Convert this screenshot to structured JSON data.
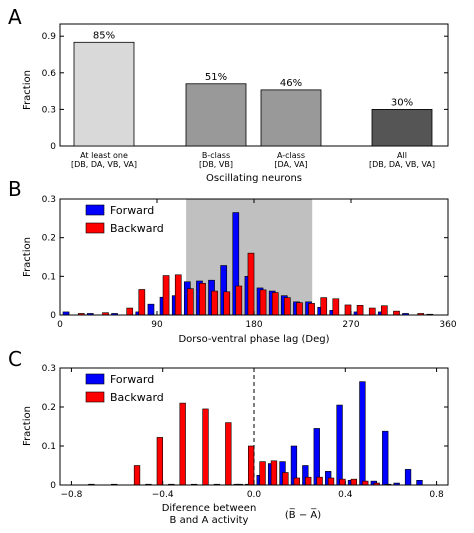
{
  "panel_labels": [
    "A",
    "B",
    "C"
  ],
  "colors": {
    "forward": "#0000ff",
    "backward": "#ff0000",
    "shade": "#c0c0c0"
  },
  "chart_data": [
    {
      "type": "bar",
      "panel": "A",
      "ylabel": "Fraction",
      "xlabel": "Oscillating neurons",
      "ylim": [
        0,
        1.0
      ],
      "yticks": [
        0,
        0.3,
        0.6,
        0.9
      ],
      "ytick_labels": [
        "0",
        "0.3",
        "0.6",
        "0.9"
      ],
      "categories": [
        {
          "line1": "At least one",
          "line2": "[DB, DA, VB, VA]",
          "value": 0.85,
          "label": "85%",
          "color": "#d9d9d9"
        },
        {
          "line1": "B-class",
          "line2": "[DB, VB]",
          "value": 0.51,
          "label": "51%",
          "color": "#999999"
        },
        {
          "line1": "A-class",
          "line2": "[DA, VA]",
          "value": 0.46,
          "label": "46%",
          "color": "#999999"
        },
        {
          "line1": "All",
          "line2": "[DB, DA, VB, VA]",
          "value": 0.3,
          "label": "30%",
          "color": "#555555"
        }
      ]
    },
    {
      "type": "bar",
      "panel": "B",
      "ylabel": "Fraction",
      "xlabel": "Dorso-ventral phase lag (Deg)",
      "xlim": [
        0,
        360
      ],
      "ylim": [
        0,
        0.3
      ],
      "xticks": [
        0,
        90,
        180,
        270,
        360
      ],
      "xtick_labels": [
        "0",
        "90",
        "180",
        "270",
        "360"
      ],
      "yticks": [
        0,
        0.1,
        0.2,
        0.3
      ],
      "ytick_labels": [
        "0",
        "0.1",
        "0.2",
        "0.3"
      ],
      "shaded_range": [
        117,
        234
      ],
      "bin_width": 11.25,
      "legend": "top-left",
      "series": [
        {
          "name": "Forward",
          "x": [
            5.6,
            28.1,
            50.6,
            73.1,
            84.4,
            95.6,
            106.9,
            118.1,
            129.4,
            140.6,
            151.9,
            163.1,
            174.4,
            185.6,
            196.9,
            208.1,
            219.4,
            230.6,
            241.9,
            253.1,
            275.6,
            298.1,
            320.6,
            343.1
          ],
          "values": [
            0.008,
            0.004,
            0.004,
            0.008,
            0.028,
            0.046,
            0.05,
            0.086,
            0.088,
            0.09,
            0.128,
            0.265,
            0.1,
            0.07,
            0.062,
            0.05,
            0.034,
            0.034,
            0.02,
            0.012,
            0.008,
            0.008,
            0.004,
            0.002
          ]
        },
        {
          "name": "Backward",
          "x": [
            16.9,
            39.4,
            61.9,
            73.1,
            95.6,
            106.9,
            118.1,
            129.4,
            140.6,
            151.9,
            163.1,
            174.4,
            185.6,
            196.9,
            208.1,
            219.4,
            230.6,
            241.9,
            253.1,
            264.4,
            275.6,
            286.9,
            298.1,
            309.4,
            331.9
          ],
          "values": [
            0.004,
            0.006,
            0.018,
            0.066,
            0.102,
            0.104,
            0.068,
            0.082,
            0.062,
            0.06,
            0.075,
            0.16,
            0.065,
            0.058,
            0.045,
            0.032,
            0.03,
            0.045,
            0.042,
            0.026,
            0.025,
            0.018,
            0.024,
            0.01,
            0.004
          ]
        }
      ]
    },
    {
      "type": "bar",
      "panel": "C",
      "ylabel": "Fraction",
      "xlabel_line1": "Diference between",
      "xlabel_line2": "B and A activity",
      "xlabel_math": "(B̅ − A̅)",
      "xlim": [
        -0.85,
        0.85
      ],
      "ylim": [
        0,
        0.3
      ],
      "xticks": [
        -0.8,
        -0.4,
        0.0,
        0.4,
        0.8
      ],
      "xtick_labels": [
        "−0.8",
        "−0.4",
        "0.0",
        "0.4",
        "0.8"
      ],
      "yticks": [
        0,
        0.1,
        0.2,
        0.3
      ],
      "ytick_labels": [
        "0",
        "0.1",
        "0.2",
        "0.3"
      ],
      "dashed_line_x": 0,
      "bin_width": 0.05,
      "legend": "top-left",
      "series": [
        {
          "name": "Forward",
          "x": [
            -0.075,
            -0.025,
            0.025,
            0.075,
            0.125,
            0.175,
            0.225,
            0.275,
            0.325,
            0.375,
            0.425,
            0.475,
            0.525,
            0.575,
            0.625,
            0.675,
            0.725
          ],
          "values": [
            0.002,
            0.002,
            0.025,
            0.055,
            0.06,
            0.1,
            0.05,
            0.145,
            0.035,
            0.205,
            0.012,
            0.265,
            0.01,
            0.138,
            0.005,
            0.04,
            0.012
          ]
        },
        {
          "name": "Backward",
          "x": [
            -0.725,
            -0.625,
            -0.525,
            -0.475,
            -0.425,
            -0.375,
            -0.325,
            -0.275,
            -0.225,
            -0.175,
            -0.125,
            -0.075,
            -0.025,
            0.025,
            0.075,
            0.125,
            0.175,
            0.225,
            0.275,
            0.325,
            0.375,
            0.425,
            0.475,
            0.525,
            0.575
          ],
          "values": [
            0.002,
            0.002,
            0.05,
            0.002,
            0.122,
            0.002,
            0.21,
            0.002,
            0.195,
            0.002,
            0.16,
            0.002,
            0.1,
            0.06,
            0.062,
            0.032,
            0.018,
            0.02,
            0.02,
            0.018,
            0.015,
            0.015,
            0.01,
            0.005,
            0.002
          ]
        }
      ]
    }
  ]
}
